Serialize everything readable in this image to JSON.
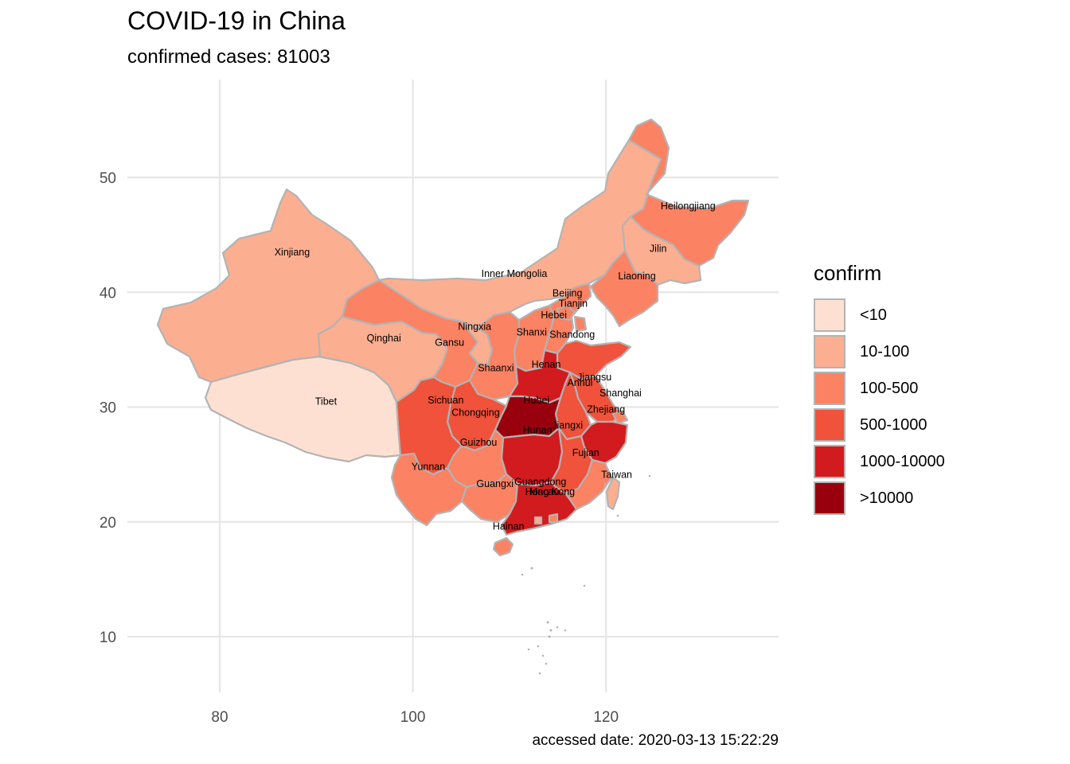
{
  "title": "COVID-19 in China",
  "subtitle": "confirmed cases: 81003",
  "caption": "accessed date: 2020-03-13 15:22:29",
  "legend": {
    "title": "confirm",
    "items": [
      {
        "label": "<10",
        "color": "#FEE0D2"
      },
      {
        "label": "10-100",
        "color": "#FCAE91"
      },
      {
        "label": "100-500",
        "color": "#FB8263"
      },
      {
        "label": "500-1000",
        "color": "#F0523B"
      },
      {
        "label": "1000-10000",
        "color": "#D21B1E"
      },
      {
        "label": ">10000",
        "color": "#99000D"
      }
    ]
  },
  "chart_data": {
    "type": "choropleth",
    "x_ticks": [
      80,
      100,
      120
    ],
    "y_ticks": [
      10,
      20,
      30,
      40,
      50
    ],
    "grid": true,
    "legend_position": "right",
    "regions": [
      {
        "name": "Xinjiang",
        "category": "10-100",
        "lon": 87.5,
        "lat": 43.5
      },
      {
        "name": "Tibet",
        "category": "<10",
        "lon": 91.0,
        "lat": 30.5
      },
      {
        "name": "Qinghai",
        "category": "10-100",
        "lon": 97.0,
        "lat": 36.0
      },
      {
        "name": "Gansu",
        "category": "100-500",
        "lon": 103.8,
        "lat": 35.6
      },
      {
        "name": "Inner Mongolia",
        "category": "10-100",
        "lon": 110.5,
        "lat": 41.6
      },
      {
        "name": "Ningxia",
        "category": "10-100",
        "lon": 106.4,
        "lat": 37.0
      },
      {
        "name": "Shaanxi",
        "category": "100-500",
        "lon": 108.6,
        "lat": 33.4
      },
      {
        "name": "Shanxi",
        "category": "100-500",
        "lon": 112.3,
        "lat": 36.5
      },
      {
        "name": "Heilongjiang",
        "category": "100-500",
        "lon": 128.5,
        "lat": 47.5
      },
      {
        "name": "Jilin",
        "category": "10-100",
        "lon": 125.4,
        "lat": 43.8
      },
      {
        "name": "Liaoning",
        "category": "100-500",
        "lon": 123.2,
        "lat": 41.4
      },
      {
        "name": "Beijing",
        "category": "100-500",
        "lon": 116.0,
        "lat": 39.9
      },
      {
        "name": "Tianjin",
        "category": "100-500",
        "lon": 116.6,
        "lat": 39.0
      },
      {
        "name": "Hebei",
        "category": "100-500",
        "lon": 114.6,
        "lat": 38.0
      },
      {
        "name": "Shandong",
        "category": "500-1000",
        "lon": 116.5,
        "lat": 36.3
      },
      {
        "name": "Henan",
        "category": "1000-10000",
        "lon": 113.8,
        "lat": 33.7
      },
      {
        "name": "Jiangsu",
        "category": "500-1000",
        "lon": 118.8,
        "lat": 32.6
      },
      {
        "name": "Anhui",
        "category": "500-1000",
        "lon": 117.3,
        "lat": 32.1
      },
      {
        "name": "Shanghai",
        "category": "100-500",
        "lon": 121.5,
        "lat": 31.2
      },
      {
        "name": "Zhejiang",
        "category": "1000-10000",
        "lon": 120.0,
        "lat": 29.8
      },
      {
        "name": "Hubei",
        "category": ">10000",
        "lon": 112.8,
        "lat": 30.6
      },
      {
        "name": "Hunan",
        "category": "1000-10000",
        "lon": 112.9,
        "lat": 28.0
      },
      {
        "name": "Jiangxi",
        "category": "500-1000",
        "lon": 116.0,
        "lat": 28.4
      },
      {
        "name": "Fujian",
        "category": "100-500",
        "lon": 117.9,
        "lat": 26.0
      },
      {
        "name": "Taiwan",
        "category": "10-100",
        "lon": 121.1,
        "lat": 24.1
      },
      {
        "name": "Sichuan",
        "category": "500-1000",
        "lon": 103.4,
        "lat": 30.6
      },
      {
        "name": "Chongqing",
        "category": "500-1000",
        "lon": 106.5,
        "lat": 29.5
      },
      {
        "name": "Guizhou",
        "category": "100-500",
        "lon": 106.8,
        "lat": 26.9
      },
      {
        "name": "Yunnan",
        "category": "100-500",
        "lon": 101.6,
        "lat": 24.8
      },
      {
        "name": "Guangxi",
        "category": "100-500",
        "lon": 108.5,
        "lat": 23.3
      },
      {
        "name": "Guangdong",
        "category": "1000-10000",
        "lon": 113.2,
        "lat": 23.5
      },
      {
        "name": "Hong Kong",
        "category": "100-500",
        "lon": 114.2,
        "lat": 22.6
      },
      {
        "name": "Macau",
        "category": "10-100",
        "lon": 113.6,
        "lat": 22.6
      },
      {
        "name": "Hainan",
        "category": "100-500",
        "lon": 109.9,
        "lat": 19.6
      }
    ]
  }
}
